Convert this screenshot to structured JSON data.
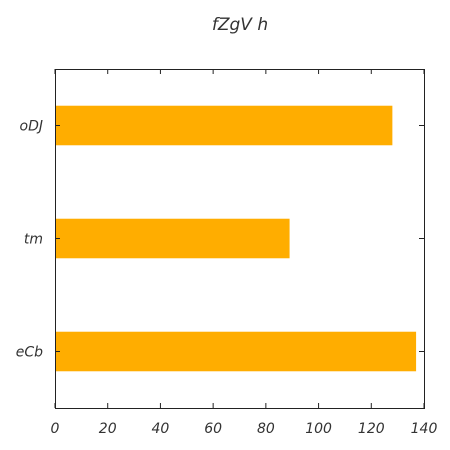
{
  "chart_data": {
    "type": "bar",
    "orientation": "horizontal",
    "title": "fZgV  h",
    "xlabel": "",
    "ylabel": "",
    "categories": [
      "oDJ",
      "tm",
      "eCb"
    ],
    "values": [
      128,
      89,
      137
    ],
    "xlim": [
      0,
      140
    ],
    "xticks": [
      0,
      20,
      40,
      60,
      80,
      100,
      120,
      140
    ],
    "grid": false,
    "legend": "none",
    "bar_color": "#ffad00"
  }
}
